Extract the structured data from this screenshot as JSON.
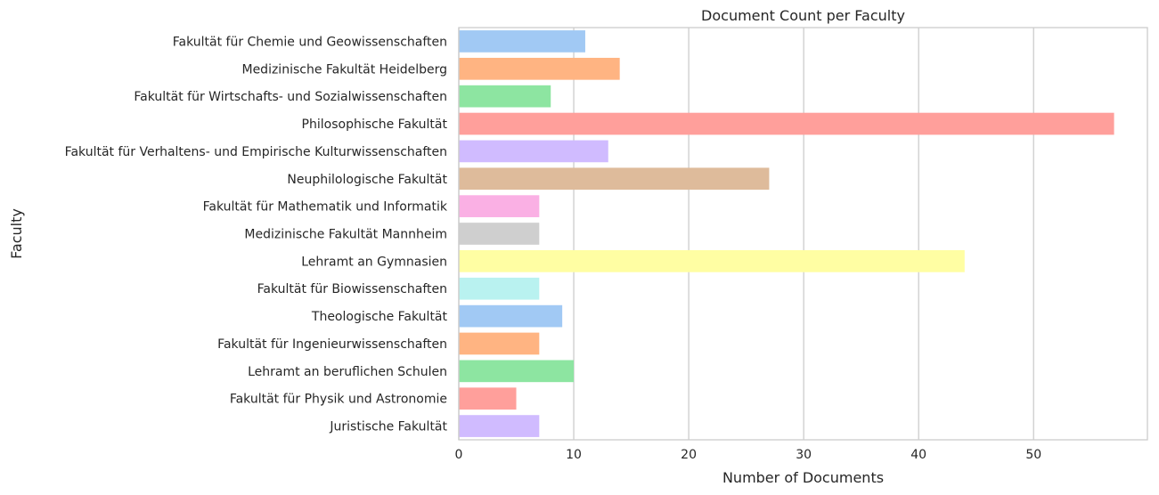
{
  "chart_data": {
    "type": "bar",
    "orientation": "horizontal",
    "title": "Document Count per Faculty",
    "xlabel": "Number of Documents",
    "ylabel": "Faculty",
    "xlim": [
      0,
      59.9
    ],
    "xticks": [
      0,
      10,
      20,
      30,
      40,
      50
    ],
    "grid": "vertical",
    "categories": [
      "Fakultät für Chemie und Geowissenschaften",
      "Medizinische Fakultät Heidelberg",
      "Fakultät für Wirtschafts- und Sozialwissenschaften",
      "Philosophische Fakultät",
      "Fakultät für Verhaltens- und Empirische Kulturwissenschaften",
      "Neuphilologische Fakultät",
      "Fakultät für Mathematik und Informatik",
      "Medizinische Fakultät Mannheim",
      "Lehramt an Gymnasien",
      "Fakultät für Biowissenschaften",
      "Theologische Fakultät",
      "Fakultät für Ingenieurwissenschaften",
      "Lehramt an beruflichen Schulen",
      "Fakultät für Physik und Astronomie",
      "Juristische Fakultät"
    ],
    "values": [
      11,
      14,
      8,
      57,
      13,
      27,
      7,
      7,
      44,
      7,
      9,
      7,
      10,
      5,
      7
    ],
    "colors": [
      "#a1c9f4",
      "#ffb482",
      "#8de5a1",
      "#ff9f9b",
      "#d0bbff",
      "#debb9b",
      "#fab0e4",
      "#cfcfcf",
      "#fffea3",
      "#b9f2f0",
      "#a1c9f4",
      "#ffb482",
      "#8de5a1",
      "#ff9f9b",
      "#d0bbff"
    ]
  }
}
